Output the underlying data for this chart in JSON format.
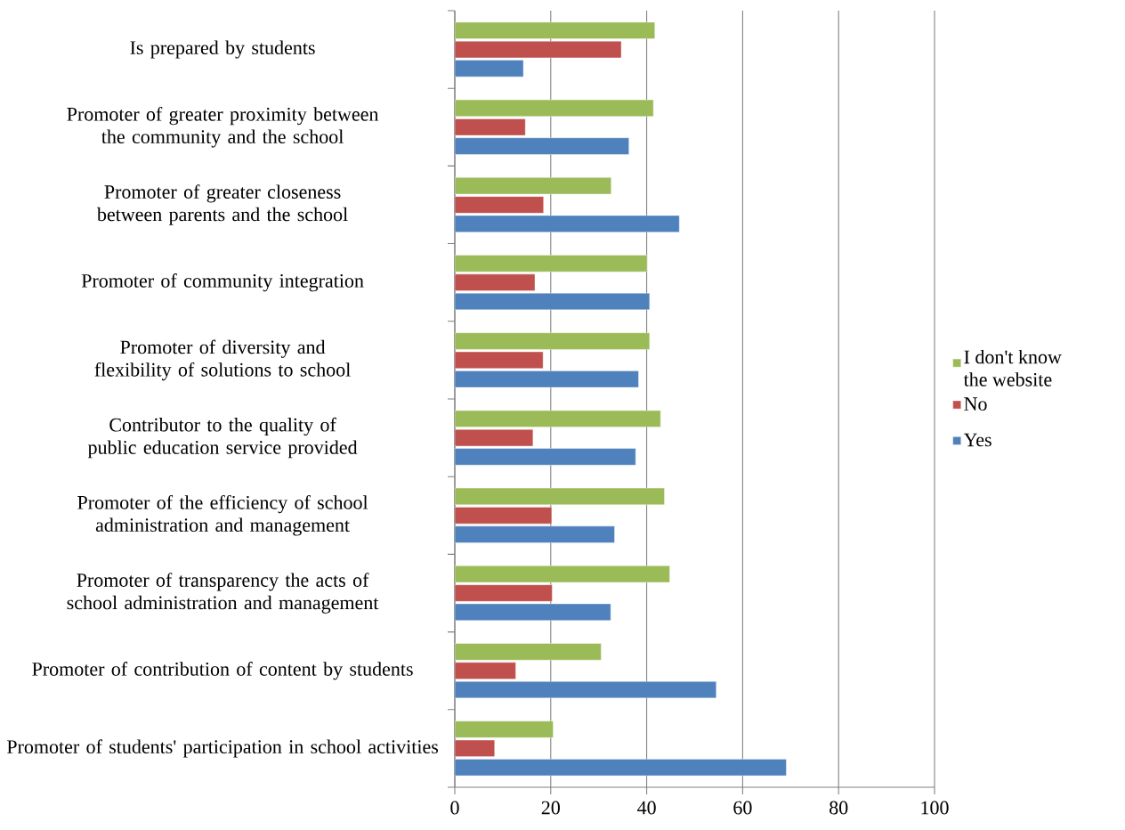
{
  "chart_data": {
    "type": "bar",
    "orientation": "horizontal",
    "categories": [
      "Is prepared by students",
      "Promoter of greater proximity between the community and the school",
      "Promoter of greater closeness between parents and the school",
      "Promoter of community integration",
      "Promoter of diversity and flexibility of solutions to school",
      "Contributor to the quality of public education service provided",
      "Promoter of the efficiency of school administration and management",
      "Promoter of transparency  the acts of school administration and management",
      "Promoter of contribution of content by students",
      "Promoter of students' participation in school activities"
    ],
    "series": [
      {
        "name": "Yes",
        "color": "#4f81bd",
        "values": [
          14.3,
          36.3,
          46.8,
          40.6,
          38.3,
          37.7,
          33.3,
          32.5,
          54.5,
          69.1
        ]
      },
      {
        "name": "No",
        "color": "#c0504d",
        "values": [
          34.7,
          14.7,
          18.5,
          16.7,
          18.4,
          16.3,
          20.2,
          20.3,
          12.7,
          8.3
        ]
      },
      {
        "name": "I don't know the website",
        "color": "#9bbb59",
        "values": [
          41.7,
          41.4,
          32.6,
          40.1,
          40.6,
          42.9,
          43.7,
          44.8,
          30.5,
          20.5
        ]
      }
    ],
    "xlim": [
      0,
      100
    ],
    "xticks": [
      0,
      20,
      40,
      60,
      80,
      100
    ],
    "grid": "x",
    "legend": "right"
  }
}
